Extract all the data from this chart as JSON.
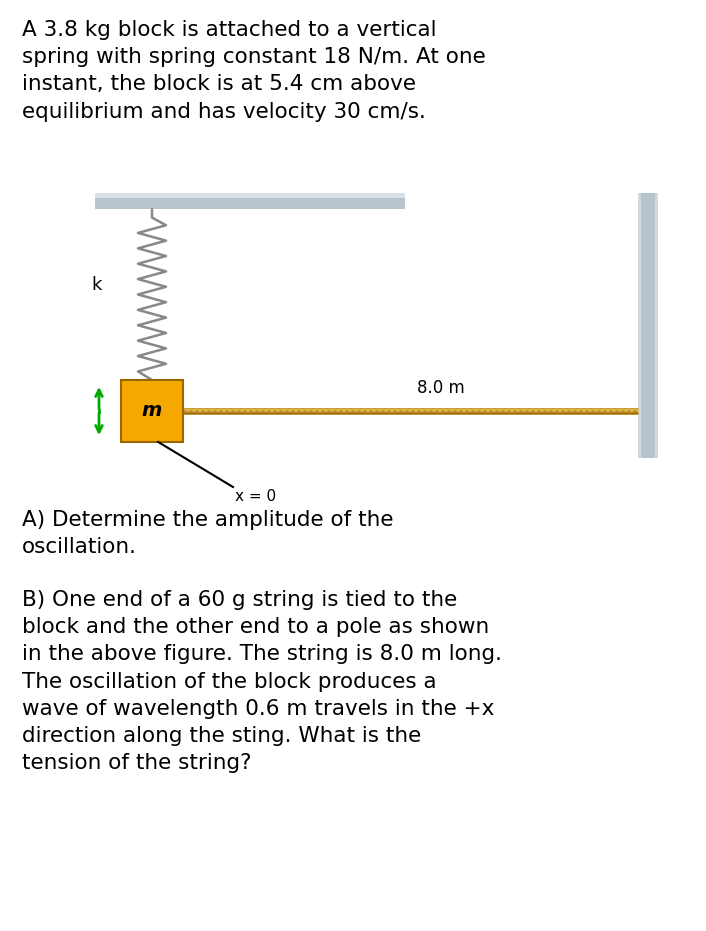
{
  "background_color": "#ffffff",
  "title_text": "A 3.8 kg block is attached to a vertical\nspring with spring constant 18 N/m. At one\ninstant, the block is at 5.4 cm above\nequilibrium and has velocity 30 cm/s.",
  "question_a": "A) Determine the amplitude of the\noscillation.",
  "question_b": "B) One end of a 60 g string is tied to the\nblock and the other end to a pole as shown\nin the above figure. The string is 8.0 m long.\nThe oscillation of the block produces a\nwave of wavelength 0.6 m travels in the +x\ndirection along the sting. What is the\ntension of the string?",
  "ceiling_color": "#b8c4cc",
  "spring_color": "#888888",
  "block_color": "#f5a800",
  "block_border_color": "#cc8800",
  "string_color_dark": "#b8860b",
  "string_color_light": "#d4a820",
  "pole_color": "#b8c4cc",
  "arrow_color": "#00aa00",
  "label_k": "k",
  "label_m": "m",
  "label_x0": "x = 0",
  "label_8m": "8.0 m",
  "font_size_text": 15.5,
  "font_size_label": 13
}
